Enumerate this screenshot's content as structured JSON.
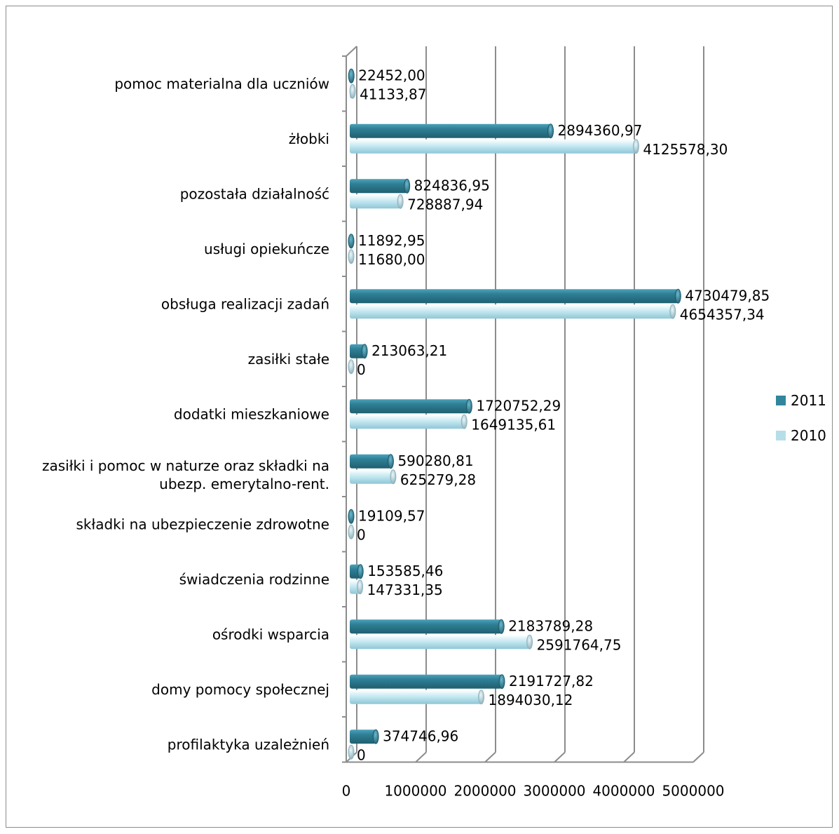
{
  "chart_data": {
    "type": "bar",
    "orientation": "horizontal",
    "categories": [
      "pomoc materialna dla uczniów",
      "żłobki",
      "pozostała działalność",
      "usługi opiekuńcze",
      "obsługa realizacji zadań",
      "zasiłki stałe",
      "dodatki mieszkaniowe",
      "zasiłki i pomoc w naturze oraz składki na ubezp. emerytalno-rent.",
      "składki na ubezpieczenie zdrowotne",
      "świadczenia rodzinne",
      "ośrodki wsparcia",
      "domy pomocy społecznej",
      "profilaktyka uzależnień"
    ],
    "category_lines": [
      [
        "pomoc materialna dla uczniów"
      ],
      [
        "żłobki"
      ],
      [
        "pozostała działalność"
      ],
      [
        "usługi opiekuńcze"
      ],
      [
        "obsługa realizacji zadań"
      ],
      [
        "zasiłki stałe"
      ],
      [
        "dodatki mieszkaniowe"
      ],
      [
        "zasiłki i pomoc w naturze oraz składki na",
        "ubezp. emerytalno-rent."
      ],
      [
        "składki na ubezpieczenie zdrowotne"
      ],
      [
        "świadczenia rodzinne"
      ],
      [
        "ośrodki wsparcia"
      ],
      [
        "domy pomocy społecznej"
      ],
      [
        "profilaktyka uzależnień"
      ]
    ],
    "series": [
      {
        "name": "2011",
        "color": "#31859c",
        "values": [
          22452.0,
          2894360.97,
          824836.95,
          11892.95,
          4730479.85,
          213063.21,
          1720752.29,
          590280.81,
          19109.57,
          153585.46,
          2183789.28,
          2191727.82,
          374746.96
        ],
        "labels": [
          "22452,00",
          "2894360,97",
          "824836,95",
          "11892,95",
          "4730479,85",
          "213063,21",
          "1720752,29",
          "590280,81",
          "19109,57",
          "153585,46",
          "2183789,28",
          "2191727,82",
          "374746,96"
        ]
      },
      {
        "name": "2010",
        "color": "#b7dee8",
        "values": [
          41133.87,
          4125578.3,
          728887.94,
          11680.0,
          4654357.34,
          0,
          1649135.61,
          625279.28,
          0,
          147331.35,
          2591764.75,
          1894030.12,
          0
        ],
        "labels": [
          "41133,87",
          "4125578,30",
          "728887,94",
          "11680,00",
          "4654357,34",
          "0",
          "1649135,61",
          "625279,28",
          "0",
          "147331,35",
          "2591764,75",
          "1894030,12",
          "0"
        ]
      }
    ],
    "x_ticks": [
      "0",
      "1000000",
      "2000000",
      "3000000",
      "4000000",
      "5000000"
    ],
    "xlim": [
      0,
      5000000
    ],
    "grid": true,
    "legend_position": "right"
  }
}
